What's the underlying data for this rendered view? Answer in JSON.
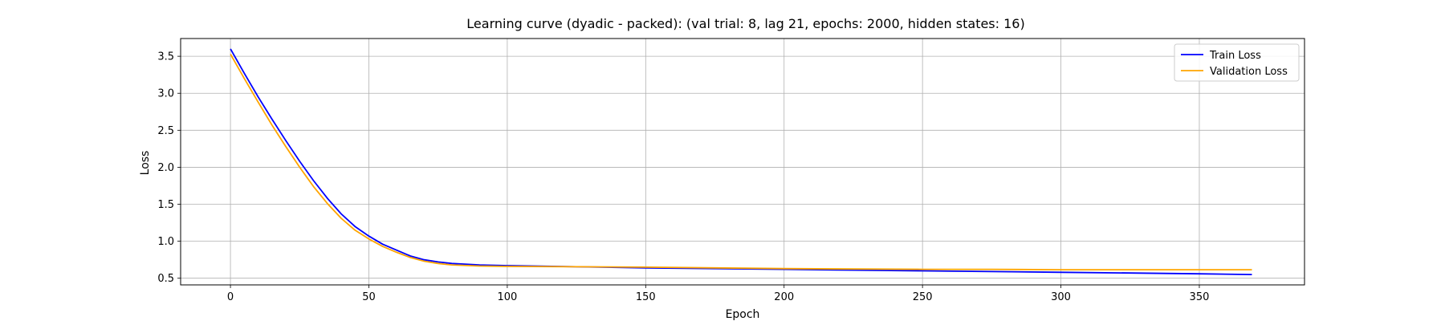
{
  "chart_data": {
    "type": "line",
    "title": "Learning curve (dyadic - packed): (val trial: 8, lag 21, epochs: 2000, hidden states: 16)",
    "xlabel": "Epoch",
    "ylabel": "Loss",
    "xlim": [
      -18,
      388
    ],
    "ylim": [
      0.41,
      3.74
    ],
    "xticks": [
      0,
      50,
      100,
      150,
      200,
      250,
      300,
      350
    ],
    "yticks": [
      0.5,
      1.0,
      1.5,
      2.0,
      2.5,
      3.0,
      3.5
    ],
    "xtick_labels": [
      "0",
      "50",
      "100",
      "150",
      "200",
      "250",
      "300",
      "350"
    ],
    "ytick_labels": [
      "0.5",
      "1.0",
      "1.5",
      "2.0",
      "2.5",
      "3.0",
      "3.5"
    ],
    "grid": true,
    "legend": "top-right",
    "series": [
      {
        "name": "Train Loss",
        "color": "#0000ff",
        "x": [
          0,
          5,
          10,
          15,
          20,
          25,
          30,
          35,
          40,
          45,
          50,
          55,
          60,
          65,
          70,
          75,
          80,
          90,
          100,
          125,
          150,
          175,
          200,
          225,
          250,
          275,
          300,
          325,
          350,
          369
        ],
        "y": [
          3.6,
          3.27,
          2.95,
          2.65,
          2.36,
          2.08,
          1.82,
          1.58,
          1.37,
          1.2,
          1.07,
          0.96,
          0.88,
          0.8,
          0.75,
          0.72,
          0.7,
          0.68,
          0.67,
          0.655,
          0.64,
          0.63,
          0.62,
          0.61,
          0.6,
          0.59,
          0.58,
          0.57,
          0.56,
          0.55
        ]
      },
      {
        "name": "Validation Loss",
        "color": "#ffa500",
        "x": [
          0,
          5,
          10,
          15,
          20,
          25,
          30,
          35,
          40,
          45,
          50,
          55,
          60,
          65,
          70,
          75,
          80,
          90,
          100,
          125,
          150,
          175,
          200,
          225,
          250,
          275,
          300,
          325,
          350,
          369
        ],
        "y": [
          3.53,
          3.2,
          2.88,
          2.57,
          2.28,
          2.0,
          1.74,
          1.51,
          1.31,
          1.15,
          1.03,
          0.93,
          0.85,
          0.78,
          0.73,
          0.7,
          0.68,
          0.665,
          0.66,
          0.655,
          0.65,
          0.64,
          0.63,
          0.625,
          0.62,
          0.62,
          0.615,
          0.615,
          0.615,
          0.615
        ]
      }
    ]
  }
}
